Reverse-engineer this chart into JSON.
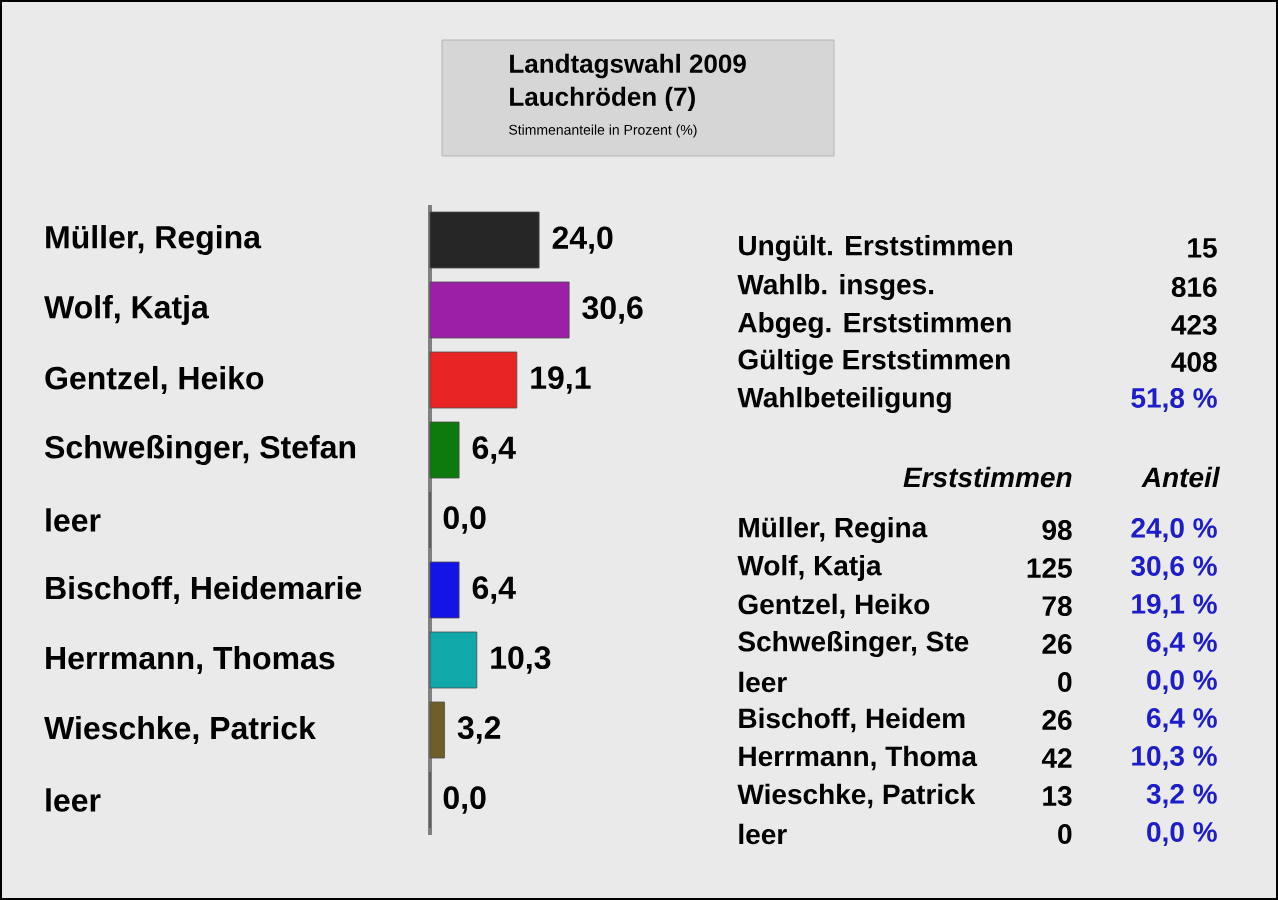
{
  "chart_data": [
    {
      "type": "bar",
      "orientation": "horizontal",
      "title": "Landtagswahl 2009",
      "subtitle": "Lauchröden (7)",
      "annotations": [
        "Stimmenanteile in Prozent (%)"
      ],
      "categories": [
        "Müller, Regina",
        "Wolf, Katja",
        "Gentzel, Heiko",
        "Schweßinger, Stefan",
        "leer",
        "Bischoff, Heidemarie",
        "Herrmann, Thomas",
        "Wieschke, Patrick",
        "leer"
      ],
      "values": [
        24.0,
        30.6,
        19.1,
        6.4,
        0.0,
        6.4,
        10.3,
        3.2,
        0.0
      ],
      "value_labels": [
        "24,0",
        "30,6",
        "19,1",
        "6,4",
        "0,0",
        "6,4",
        "10,3",
        "3,2",
        "0,0"
      ],
      "colors": [
        "#262626",
        "#9c1fa8",
        "#e82424",
        "#0e7a0e",
        "#c2405c",
        "#1414e6",
        "#10a8a8",
        "#6e5e28",
        "#b4b4b4"
      ],
      "tick_labels": "y"
    },
    {
      "type": "other",
      "annotations": [
        "Ungült. Erststimmen",
        "15",
        "Wahlb. insges.",
        "816",
        "Abgeg. Erststimmen",
        "423",
        "Gültige Erststimmen",
        "408",
        "Wahlbeteiligung",
        "51,8 %",
        "Erststimmen",
        "Anteil",
        "Müller, Regina",
        "98",
        "24,0 %",
        "Wolf, Katja",
        "125",
        "30,6 %",
        "Gentzel, Heiko",
        "78",
        "19,1 %",
        "Schweßinger, Ste",
        "26",
        "6,4 %",
        "leer",
        "0",
        "0,0 %",
        "Bischoff, Heidem",
        "26",
        "6,4 %",
        "Herrmann, Thoma",
        "42",
        "10,3 %",
        "Wieschke, Patrick",
        "13",
        "3,2 %",
        "leer",
        "0",
        "0,0 %"
      ]
    }
  ]
}
